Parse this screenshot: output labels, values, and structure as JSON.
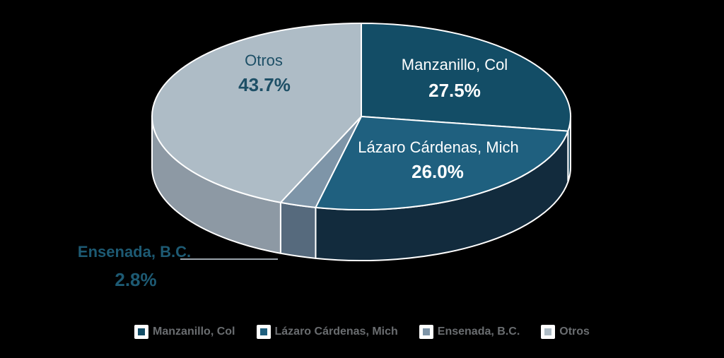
{
  "background_color": "#000000",
  "chart_data": {
    "type": "pie",
    "title": "",
    "effect": "3d",
    "start_angle_deg": 0,
    "direction": "clockwise",
    "value_unit": "%",
    "slices": [
      {
        "name": "Manzanillo, Col",
        "value": 27.5,
        "pct_label": "27.5%",
        "top_color": "#134d66",
        "side_color": "#0f3c52",
        "label_color": "#ffffff"
      },
      {
        "name": "Lázaro Cárdenas, Mich",
        "value": 26.0,
        "pct_label": "26.0%",
        "top_color": "#1f607f",
        "side_color": "#122b3d",
        "label_color": "#ffffff"
      },
      {
        "name": "Ensenada, B.C.",
        "value": 2.8,
        "pct_label": "2.8%",
        "top_color": "#7e95a8",
        "side_color": "#566a7d",
        "label_color": "#1d5a73"
      },
      {
        "name": "Otros",
        "value": 43.7,
        "pct_label": "43.7%",
        "top_color": "#aebcc6",
        "side_color": "#8d99a4",
        "label_color": "#1d4f66"
      }
    ],
    "legend": {
      "position": "bottom",
      "label_color": "#6a6d70"
    }
  }
}
